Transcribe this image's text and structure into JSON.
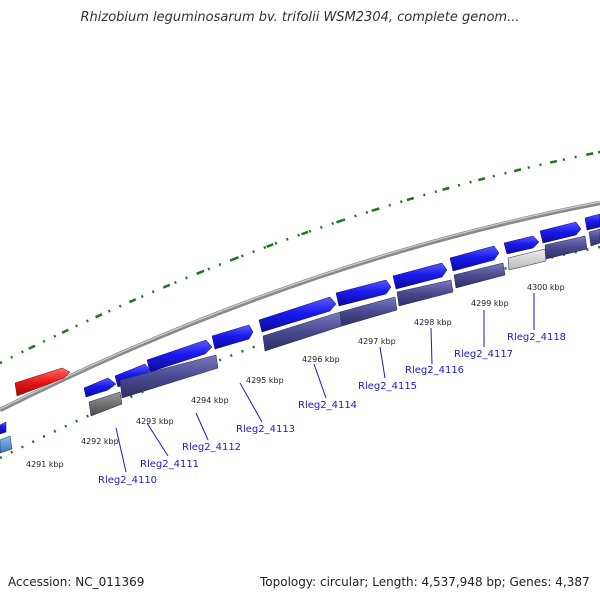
{
  "title": "Rhizobium leguminosarum bv. trifolii WSM2304, complete genom...",
  "footer": {
    "accession": "Accession: NC_011369",
    "summary": "Topology: circular; Length: 4,537,948 bp; Genes: 4,387"
  },
  "kbp_ticks": [
    "4291 kbp",
    "4292 kbp",
    "4293 kbp",
    "4294 kbp",
    "4295 kbp",
    "4296 kbp",
    "4297 kbp",
    "4298 kbp",
    "4299 kbp",
    "4300 kbp"
  ],
  "gene_labels": [
    "Rleg2_4110",
    "Rleg2_4111",
    "Rleg2_4112",
    "Rleg2_4113",
    "Rleg2_4114",
    "Rleg2_4115",
    "Rleg2_4116",
    "Rleg2_4117",
    "Rleg2_4118"
  ],
  "colors": {
    "cds_strand": "#1a1aee",
    "cds_band": "#4a4a90",
    "highlight": "#e81818",
    "backbone": "#8a8a8a",
    "tick": "#1a7a1a",
    "label": "#1a1acc"
  }
}
